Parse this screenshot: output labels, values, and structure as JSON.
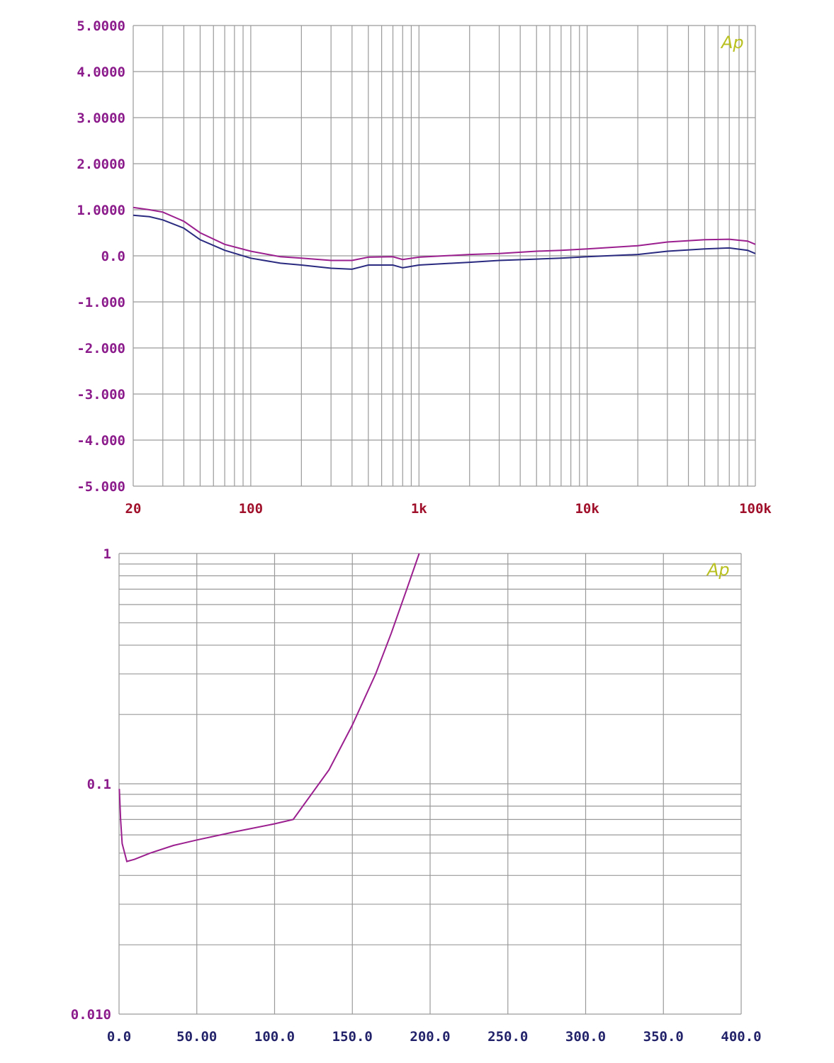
{
  "logo_text": "Ap",
  "colors": {
    "grid": "#9a9a9a",
    "axis_text_purple": "#8b1a8b",
    "axis_text_red": "#a0102a",
    "axis_text_navy": "#22226a",
    "series_purple": "#9b1f8f",
    "series_navy": "#2a2a80",
    "logo": "#b8c020"
  },
  "chart_data": [
    {
      "type": "line",
      "xscale": "log",
      "xlim": [
        20,
        100000
      ],
      "ylim": [
        -5,
        5
      ],
      "grid": true,
      "title": "",
      "xlabel": "",
      "ylabel": "",
      "x_ticks": [
        {
          "value": 20,
          "label": "20"
        },
        {
          "value": 100,
          "label": "100"
        },
        {
          "value": 1000,
          "label": "1k"
        },
        {
          "value": 10000,
          "label": "10k"
        },
        {
          "value": 100000,
          "label": "100k"
        }
      ],
      "y_ticks": [
        {
          "value": 5,
          "label": "5.0000"
        },
        {
          "value": 4,
          "label": "4.0000"
        },
        {
          "value": 3,
          "label": "3.0000"
        },
        {
          "value": 2,
          "label": "2.0000"
        },
        {
          "value": 1,
          "label": "1.0000"
        },
        {
          "value": 0,
          "label": "0.0"
        },
        {
          "value": -1,
          "label": "-1.000"
        },
        {
          "value": -2,
          "label": "-2.000"
        },
        {
          "value": -3,
          "label": "-3.000"
        },
        {
          "value": -4,
          "label": "-4.000"
        },
        {
          "value": -5,
          "label": "-5.000"
        }
      ],
      "series": [
        {
          "color": "#9b1f8f",
          "x": [
            20,
            25,
            30,
            40,
            50,
            70,
            100,
            150,
            200,
            300,
            400,
            500,
            700,
            800,
            1000,
            2000,
            3000,
            5000,
            7000,
            10000,
            20000,
            30000,
            50000,
            70000,
            90000,
            100000
          ],
          "y": [
            1.05,
            1.0,
            0.95,
            0.75,
            0.5,
            0.25,
            0.1,
            -0.02,
            -0.05,
            -0.1,
            -0.1,
            -0.03,
            -0.02,
            -0.08,
            -0.03,
            0.03,
            0.05,
            0.1,
            0.12,
            0.15,
            0.22,
            0.3,
            0.35,
            0.36,
            0.32,
            0.25
          ]
        },
        {
          "color": "#2a2a80",
          "x": [
            20,
            25,
            30,
            40,
            50,
            70,
            100,
            150,
            200,
            300,
            400,
            500,
            700,
            800,
            1000,
            2000,
            3000,
            5000,
            7000,
            10000,
            20000,
            30000,
            50000,
            70000,
            90000,
            100000
          ],
          "y": [
            0.88,
            0.85,
            0.78,
            0.6,
            0.35,
            0.12,
            -0.05,
            -0.16,
            -0.2,
            -0.27,
            -0.29,
            -0.2,
            -0.2,
            -0.26,
            -0.2,
            -0.14,
            -0.1,
            -0.07,
            -0.05,
            -0.02,
            0.03,
            0.1,
            0.15,
            0.17,
            0.12,
            0.05
          ]
        }
      ]
    },
    {
      "type": "line",
      "yscale": "log",
      "xlim": [
        0,
        400
      ],
      "ylim": [
        0.01,
        1
      ],
      "grid": true,
      "title": "",
      "xlabel": "",
      "ylabel": "",
      "x_ticks": [
        {
          "value": 0,
          "label": "0.0"
        },
        {
          "value": 50,
          "label": "50.00"
        },
        {
          "value": 100,
          "label": "100.0"
        },
        {
          "value": 150,
          "label": "150.0"
        },
        {
          "value": 200,
          "label": "200.0"
        },
        {
          "value": 250,
          "label": "250.0"
        },
        {
          "value": 300,
          "label": "300.0"
        },
        {
          "value": 350,
          "label": "350.0"
        },
        {
          "value": 400,
          "label": "400.0"
        }
      ],
      "y_ticks": [
        {
          "value": 1,
          "label": "1"
        },
        {
          "value": 0.1,
          "label": "0.1"
        },
        {
          "value": 0.01,
          "label": "0.010"
        }
      ],
      "series": [
        {
          "color": "#9b1f8f",
          "x": [
            0.2,
            1,
            2,
            5,
            10,
            20,
            35,
            50,
            75,
            100,
            112,
            135,
            150,
            165,
            175,
            185,
            193
          ],
          "y": [
            0.095,
            0.07,
            0.055,
            0.046,
            0.047,
            0.05,
            0.054,
            0.057,
            0.062,
            0.067,
            0.07,
            0.115,
            0.18,
            0.3,
            0.45,
            0.7,
            1.0
          ]
        }
      ]
    }
  ]
}
